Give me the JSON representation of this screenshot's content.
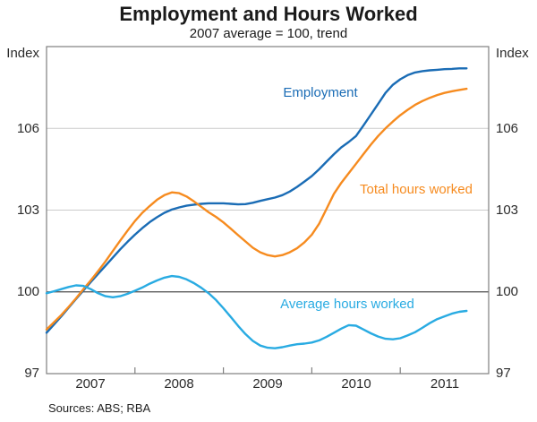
{
  "chart_data": {
    "type": "line",
    "title": "Employment and Hours Worked",
    "subtitle": "2007 average = 100, trend",
    "y_axis_name_left": "Index",
    "y_axis_name_right": "Index",
    "ylim": [
      97,
      109
    ],
    "yticks": [
      97,
      100,
      103,
      106
    ],
    "ytick_labels": [
      "106",
      "103",
      "100",
      "97"
    ],
    "reference_line": 100,
    "grid": "horizontal",
    "x_axis_years": [
      "2007",
      "2008",
      "2009",
      "2010",
      "2011"
    ],
    "x_start": "Jan 2007",
    "x_end": "Oct 2011",
    "x_frequency": "monthly",
    "series": [
      {
        "name": "Employment",
        "color": "#1a6cb5",
        "label_position": "above line, centre of chart",
        "values": [
          98.5,
          98.8,
          99.1,
          99.42,
          99.74,
          100.05,
          100.36,
          100.66,
          100.96,
          101.26,
          101.56,
          101.84,
          102.1,
          102.34,
          102.56,
          102.74,
          102.9,
          103.02,
          103.1,
          103.16,
          103.2,
          103.23,
          103.25,
          103.25,
          103.25,
          103.23,
          103.21,
          103.22,
          103.27,
          103.34,
          103.4,
          103.46,
          103.55,
          103.68,
          103.85,
          104.05,
          104.25,
          104.5,
          104.78,
          105.05,
          105.3,
          105.5,
          105.72,
          106.1,
          106.5,
          106.9,
          107.3,
          107.6,
          107.8,
          107.95,
          108.05,
          108.1,
          108.13,
          108.15,
          108.17,
          108.18,
          108.2,
          108.2
        ]
      },
      {
        "name": "Total hours worked",
        "color": "#f68b1f",
        "label_position": "right of line, mid chart",
        "values": [
          98.62,
          98.88,
          99.15,
          99.45,
          99.76,
          100.1,
          100.42,
          100.76,
          101.12,
          101.5,
          101.88,
          102.25,
          102.6,
          102.9,
          103.15,
          103.38,
          103.55,
          103.65,
          103.62,
          103.5,
          103.32,
          103.12,
          102.92,
          102.75,
          102.55,
          102.32,
          102.08,
          101.85,
          101.62,
          101.45,
          101.35,
          101.3,
          101.35,
          101.45,
          101.6,
          101.82,
          102.1,
          102.5,
          103.05,
          103.6,
          104.0,
          104.35,
          104.7,
          105.05,
          105.4,
          105.72,
          106.0,
          106.25,
          106.48,
          106.68,
          106.86,
          107.0,
          107.12,
          107.22,
          107.3,
          107.36,
          107.41,
          107.45
        ]
      },
      {
        "name": "Average hours worked",
        "color": "#29abe2",
        "label_position": "below 100 line, centre",
        "values": [
          99.95,
          100.02,
          100.1,
          100.18,
          100.24,
          100.22,
          100.1,
          99.95,
          99.84,
          99.8,
          99.84,
          99.93,
          100.04,
          100.16,
          100.3,
          100.42,
          100.52,
          100.58,
          100.55,
          100.46,
          100.32,
          100.15,
          99.95,
          99.7,
          99.4,
          99.08,
          98.75,
          98.45,
          98.2,
          98.03,
          97.95,
          97.93,
          97.97,
          98.03,
          98.08,
          98.1,
          98.14,
          98.22,
          98.35,
          98.5,
          98.65,
          98.78,
          98.76,
          98.62,
          98.48,
          98.36,
          98.28,
          98.26,
          98.3,
          98.4,
          98.52,
          98.68,
          98.85,
          99.0,
          99.1,
          99.2,
          99.27,
          99.3
        ]
      }
    ],
    "sources": "Sources: ABS; RBA"
  }
}
